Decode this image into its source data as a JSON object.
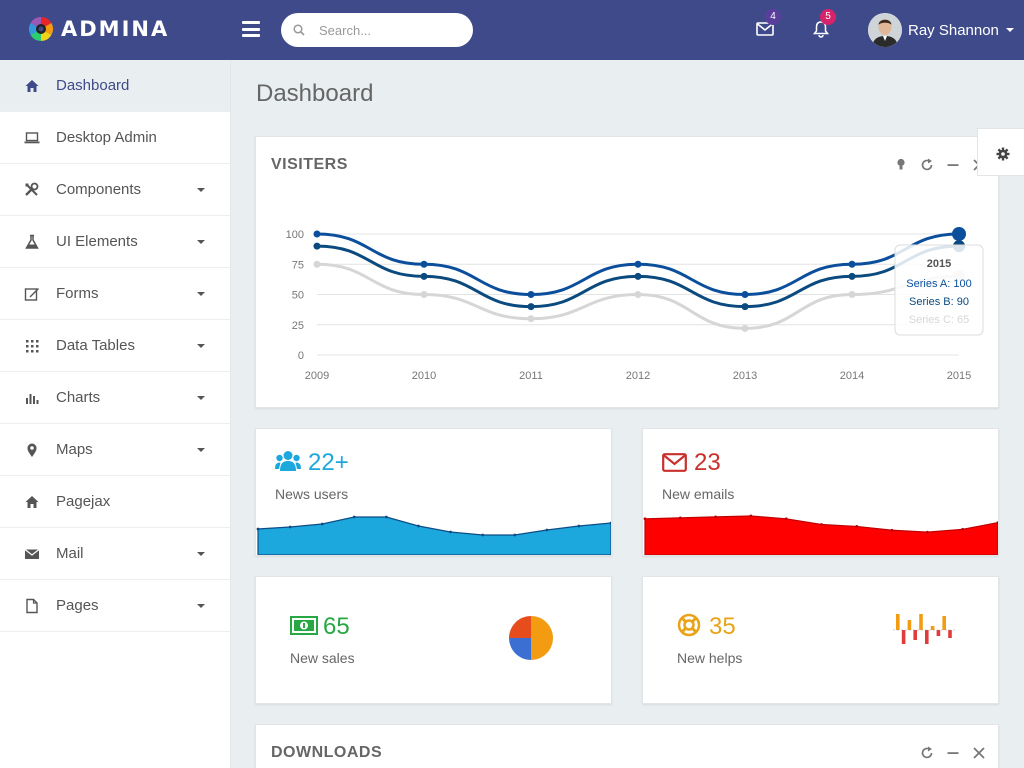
{
  "header": {
    "brand": "ADMINA",
    "search_placeholder": "Search...",
    "mail_count": "4",
    "notification_count": "5",
    "user_name": "Ray Shannon",
    "colors": {
      "bar": "#3f4a8a",
      "mail_badge": "#5a3e9c",
      "notif_badge": "#d6246a"
    }
  },
  "sidebar": {
    "items": [
      {
        "label": "Dashboard",
        "icon": "home-icon",
        "has_submenu": false,
        "active": true
      },
      {
        "label": "Desktop Admin",
        "icon": "laptop-icon",
        "has_submenu": false
      },
      {
        "label": "Components",
        "icon": "tools-icon",
        "has_submenu": true
      },
      {
        "label": "UI Elements",
        "icon": "flask-icon",
        "has_submenu": true
      },
      {
        "label": "Forms",
        "icon": "edit-icon",
        "has_submenu": true
      },
      {
        "label": "Data Tables",
        "icon": "grid-icon",
        "has_submenu": true
      },
      {
        "label": "Charts",
        "icon": "bar-chart-icon",
        "has_submenu": true
      },
      {
        "label": "Maps",
        "icon": "map-pin-icon",
        "has_submenu": true
      },
      {
        "label": "Pagejax",
        "icon": "home-icon",
        "has_submenu": false
      },
      {
        "label": "Mail",
        "icon": "envelope-icon",
        "has_submenu": true
      },
      {
        "label": "Pages",
        "icon": "file-icon",
        "has_submenu": true
      }
    ]
  },
  "main": {
    "page_title": "Dashboard",
    "visitors_panel": {
      "title": "VISITERS"
    },
    "downloads_panel": {
      "title": "DOWNLOADS"
    },
    "stats": [
      {
        "value": "22+",
        "label": "News users",
        "color": "#1ca8dd",
        "icon": "users-icon"
      },
      {
        "value": "23",
        "label": "New emails",
        "color": "#c9302c",
        "icon": "envelope-icon"
      },
      {
        "value": "65",
        "label": "New sales",
        "color": "#28a745",
        "icon": "money-icon"
      },
      {
        "value": "35",
        "label": "New helps",
        "color": "#e8a317",
        "icon": "lifebuoy-icon"
      }
    ]
  },
  "chart_data": {
    "type": "line",
    "categories": [
      "2009",
      "2010",
      "2011",
      "2012",
      "2013",
      "2014",
      "2015"
    ],
    "series": [
      {
        "name": "Series A",
        "values": [
          100,
          75,
          50,
          75,
          50,
          75,
          100
        ],
        "color": "#0b4f9c"
      },
      {
        "name": "Series B",
        "values": [
          90,
          65,
          40,
          65,
          40,
          65,
          90
        ],
        "color": "#0b4a7e"
      },
      {
        "name": "Series C",
        "values": [
          75,
          50,
          30,
          50,
          22,
          50,
          65
        ],
        "color": "#d6d6d6"
      }
    ],
    "yticks": [
      "100",
      "75",
      "50",
      "25",
      "0"
    ],
    "ylim": [
      0,
      100
    ],
    "grid": true,
    "tooltip": {
      "title": "2015",
      "lines": [
        "Series A: 100",
        "Series B: 90",
        "Series C: 65"
      ]
    }
  },
  "sparklines": {
    "users": [
      26,
      28,
      31,
      38,
      38,
      29,
      23,
      20,
      20,
      25,
      29,
      32
    ],
    "emails": [
      38,
      39,
      40,
      41,
      38,
      32,
      30,
      26,
      24,
      27,
      34
    ],
    "pie": [
      0.5,
      0.25,
      0.25
    ],
    "helps_bars": [
      8,
      -7,
      5,
      -5,
      8,
      -7,
      2,
      -3,
      7,
      -4
    ]
  }
}
